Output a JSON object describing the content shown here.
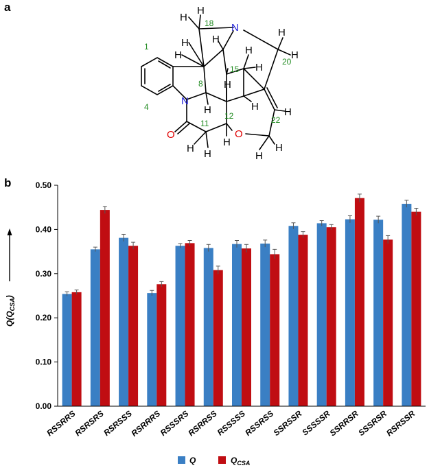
{
  "panels": {
    "a": "a",
    "b": "b"
  },
  "molecule": {
    "atoms": {
      "N": "N",
      "O": "O",
      "H": "H"
    },
    "numbers": {
      "n1": "1",
      "n4": "4",
      "n8": "8",
      "n11": "11",
      "n12": "12",
      "n15": "15",
      "n18": "18",
      "n20": "20",
      "n22": "22"
    }
  },
  "chart_data": {
    "type": "bar",
    "categories": [
      "RSSRRS",
      "RSRSRS",
      "RSRSSS",
      "RSRRRS",
      "RSSSRS",
      "RSRRSS",
      "RSSSSS",
      "RSSRSS",
      "SSRSSR",
      "SSSSSR",
      "SSRRSR",
      "SSSRSR",
      "RSRSSR"
    ],
    "series": [
      {
        "name": "Q",
        "color": "#3a7fc4",
        "values": [
          0.254,
          0.355,
          0.381,
          0.256,
          0.363,
          0.358,
          0.367,
          0.368,
          0.408,
          0.414,
          0.423,
          0.422,
          0.458
        ],
        "errors": [
          0.005,
          0.005,
          0.008,
          0.006,
          0.005,
          0.008,
          0.008,
          0.008,
          0.007,
          0.006,
          0.008,
          0.008,
          0.008
        ]
      },
      {
        "name": "Q_CSA",
        "color": "#c00d12",
        "values": [
          0.258,
          0.444,
          0.363,
          0.276,
          0.369,
          0.308,
          0.357,
          0.344,
          0.388,
          0.405,
          0.471,
          0.377,
          0.44
        ],
        "errors": [
          0.005,
          0.008,
          0.008,
          0.006,
          0.006,
          0.009,
          0.009,
          0.011,
          0.007,
          0.006,
          0.009,
          0.009,
          0.008
        ]
      }
    ],
    "yticks": [
      "0.00",
      "0.10",
      "0.20",
      "0.30",
      "0.40",
      "0.50"
    ],
    "ylim": [
      0,
      0.5
    ],
    "ylabel_main": "Q",
    "ylabel_paren_open": "(",
    "ylabel_inner": "Q",
    "ylabel_sub": "CSA",
    "ylabel_paren_close": ")",
    "legend": {
      "q_label": "Q",
      "qcsa_main": "Q",
      "qcsa_sub": "CSA"
    }
  }
}
